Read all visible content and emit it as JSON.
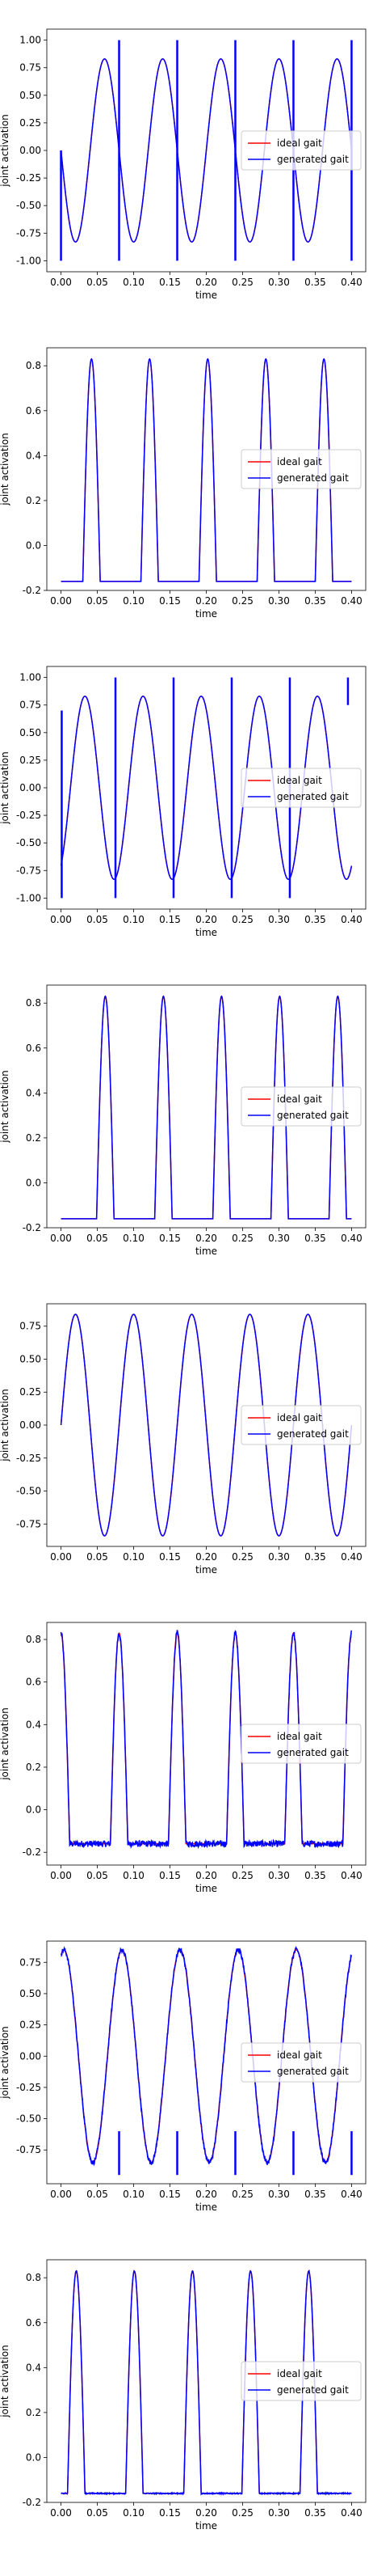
{
  "chart_data": [
    {
      "type": "line",
      "xlabel": "time",
      "ylabel": "joint activation",
      "xlim": [
        -0.0195,
        0.4195
      ],
      "ylim": [
        -1.1,
        1.1
      ],
      "xticks": [
        "0.00",
        "0.05",
        "0.10",
        "0.15",
        "0.20",
        "0.25",
        "0.30",
        "0.35",
        "0.40"
      ],
      "yticks": [
        "-1.00",
        "-0.75",
        "-0.50",
        "-0.25",
        "0.00",
        "0.25",
        "0.50",
        "0.75",
        "1.00"
      ],
      "legend_position": "center-right",
      "series": [
        {
          "name": "ideal gait",
          "color": "#ff0000"
        },
        {
          "name": "generated gait",
          "color": "#0000ff"
        }
      ],
      "waveform": {
        "kind": "sine",
        "amplitude": 0.83,
        "period": 0.08,
        "phase": 0.0,
        "sign": -1
      },
      "spikes": [
        {
          "x": 0.0,
          "from": 0.0,
          "to": -1.0
        },
        {
          "x": 0.08,
          "from": 1.0,
          "to": -1.0
        },
        {
          "x": 0.16,
          "from": 1.0,
          "to": -1.0
        },
        {
          "x": 0.24,
          "from": 1.0,
          "to": -1.0
        },
        {
          "x": 0.32,
          "from": 1.0,
          "to": -1.0
        },
        {
          "x": 0.4,
          "from": 1.0,
          "to": -1.0
        }
      ]
    },
    {
      "type": "line",
      "xlabel": "time",
      "ylabel": "joint activation",
      "xlim": [
        -0.0195,
        0.4195
      ],
      "ylim": [
        -0.2,
        0.88
      ],
      "xticks": [
        "0.00",
        "0.05",
        "0.10",
        "0.15",
        "0.20",
        "0.25",
        "0.30",
        "0.35",
        "0.40"
      ],
      "yticks": [
        "-0.2",
        "0.0",
        "0.2",
        "0.4",
        "0.6",
        "0.8"
      ],
      "legend_position": "center-right",
      "series": [
        {
          "name": "ideal gait",
          "color": "#ff0000"
        },
        {
          "name": "generated gait",
          "color": "#0000ff"
        }
      ],
      "waveform": {
        "kind": "pulse",
        "baseline": -0.16,
        "peak": 0.83,
        "period": 0.08,
        "center": 0.042,
        "width": 0.012,
        "noise": 0.0
      }
    },
    {
      "type": "line",
      "xlabel": "time",
      "ylabel": "joint activation",
      "xlim": [
        -0.0195,
        0.4195
      ],
      "ylim": [
        -1.1,
        1.1
      ],
      "xticks": [
        "0.00",
        "0.05",
        "0.10",
        "0.15",
        "0.20",
        "0.25",
        "0.30",
        "0.35",
        "0.40"
      ],
      "yticks": [
        "-1.00",
        "-0.75",
        "-0.50",
        "-0.25",
        "0.00",
        "0.25",
        "0.50",
        "0.75",
        "1.00"
      ],
      "legend_position": "center-right",
      "series": [
        {
          "name": "ideal gait",
          "color": "#ff0000"
        },
        {
          "name": "generated gait",
          "color": "#0000ff"
        }
      ],
      "waveform": {
        "kind": "sine",
        "amplitude": 0.83,
        "period": 0.08,
        "phase": 0.013,
        "sign": 1
      },
      "spikes": [
        {
          "x": 0.001,
          "from": 0.7,
          "to": -1.0
        },
        {
          "x": 0.075,
          "from": 1.0,
          "to": -1.0
        },
        {
          "x": 0.155,
          "from": 1.0,
          "to": -1.0
        },
        {
          "x": 0.235,
          "from": 1.0,
          "to": -1.0
        },
        {
          "x": 0.315,
          "from": 1.0,
          "to": -1.0
        },
        {
          "x": 0.395,
          "from": 1.0,
          "to": 0.75
        }
      ]
    },
    {
      "type": "line",
      "xlabel": "time",
      "ylabel": "joint activation",
      "xlim": [
        -0.0195,
        0.4195
      ],
      "ylim": [
        -0.2,
        0.88
      ],
      "xticks": [
        "0.00",
        "0.05",
        "0.10",
        "0.15",
        "0.20",
        "0.25",
        "0.30",
        "0.35",
        "0.40"
      ],
      "yticks": [
        "-0.2",
        "0.0",
        "0.2",
        "0.4",
        "0.6",
        "0.8"
      ],
      "legend_position": "center-right",
      "series": [
        {
          "name": "ideal gait",
          "color": "#ff0000"
        },
        {
          "name": "generated gait",
          "color": "#0000ff"
        }
      ],
      "waveform": {
        "kind": "pulse",
        "baseline": -0.16,
        "peak": 0.83,
        "period": 0.08,
        "center": 0.061,
        "width": 0.012,
        "noise": 0.0
      }
    },
    {
      "type": "line",
      "xlabel": "time",
      "ylabel": "joint activation",
      "xlim": [
        -0.0195,
        0.4195
      ],
      "ylim": [
        -0.92,
        0.92
      ],
      "xticks": [
        "0.00",
        "0.05",
        "0.10",
        "0.15",
        "0.20",
        "0.25",
        "0.30",
        "0.35",
        "0.40"
      ],
      "yticks": [
        "-0.75",
        "-0.50",
        "-0.25",
        "0.00",
        "0.25",
        "0.50",
        "0.75"
      ],
      "legend_position": "center-right",
      "series": [
        {
          "name": "ideal gait",
          "color": "#ff0000"
        },
        {
          "name": "generated gait",
          "color": "#0000ff"
        }
      ],
      "waveform": {
        "kind": "sine",
        "amplitude": 0.84,
        "period": 0.08,
        "phase": 0.0,
        "sign": 1
      }
    },
    {
      "type": "line",
      "xlabel": "time",
      "ylabel": "joint activation",
      "xlim": [
        -0.0195,
        0.4195
      ],
      "ylim": [
        -0.26,
        0.88
      ],
      "xticks": [
        "0.00",
        "0.05",
        "0.10",
        "0.15",
        "0.20",
        "0.25",
        "0.30",
        "0.35",
        "0.40"
      ],
      "yticks": [
        "-0.2",
        "0.0",
        "0.2",
        "0.4",
        "0.6",
        "0.8"
      ],
      "legend_position": "center-right",
      "series": [
        {
          "name": "ideal gait",
          "color": "#ff0000"
        },
        {
          "name": "generated gait",
          "color": "#0000ff"
        }
      ],
      "waveform": {
        "kind": "pulse",
        "baseline": -0.16,
        "peak": 0.83,
        "period": 0.08,
        "center": 0.0,
        "width": 0.012,
        "noise": 0.03
      }
    },
    {
      "type": "line",
      "xlabel": "time",
      "ylabel": "joint activation",
      "xlim": [
        -0.0195,
        0.4195
      ],
      "ylim": [
        -1.02,
        0.92
      ],
      "xticks": [
        "0.00",
        "0.05",
        "0.10",
        "0.15",
        "0.20",
        "0.25",
        "0.30",
        "0.35",
        "0.40"
      ],
      "yticks": [
        "-0.75",
        "-0.50",
        "-0.25",
        "0.00",
        "0.25",
        "0.50",
        "0.75"
      ],
      "legend_position": "center-right",
      "series": [
        {
          "name": "ideal gait",
          "color": "#ff0000"
        },
        {
          "name": "generated gait",
          "color": "#0000ff"
        }
      ],
      "waveform": {
        "kind": "sine",
        "amplitude": 0.85,
        "period": 0.08,
        "phase": -0.016,
        "sign": 1,
        "noise": 0.04
      },
      "spikes": [
        {
          "x": 0.08,
          "from": -0.6,
          "to": -0.95
        },
        {
          "x": 0.16,
          "from": -0.6,
          "to": -0.95
        },
        {
          "x": 0.24,
          "from": -0.6,
          "to": -0.95
        },
        {
          "x": 0.32,
          "from": -0.6,
          "to": -0.95
        },
        {
          "x": 0.4,
          "from": -0.6,
          "to": -0.95
        }
      ]
    },
    {
      "type": "line",
      "xlabel": "time",
      "ylabel": "joint activation",
      "xlim": [
        -0.0195,
        0.4195
      ],
      "ylim": [
        -0.2,
        0.88
      ],
      "xticks": [
        "0.00",
        "0.05",
        "0.10",
        "0.15",
        "0.20",
        "0.25",
        "0.30",
        "0.35",
        "0.40"
      ],
      "yticks": [
        "-0.2",
        "0.0",
        "0.2",
        "0.4",
        "0.6",
        "0.8"
      ],
      "legend_position": "center-right",
      "series": [
        {
          "name": "ideal gait",
          "color": "#ff0000"
        },
        {
          "name": "generated gait",
          "color": "#0000ff"
        }
      ],
      "waveform": {
        "kind": "pulse",
        "baseline": -0.16,
        "peak": 0.83,
        "period": 0.08,
        "center": 0.021,
        "width": 0.012,
        "noise": 0.005
      }
    }
  ]
}
